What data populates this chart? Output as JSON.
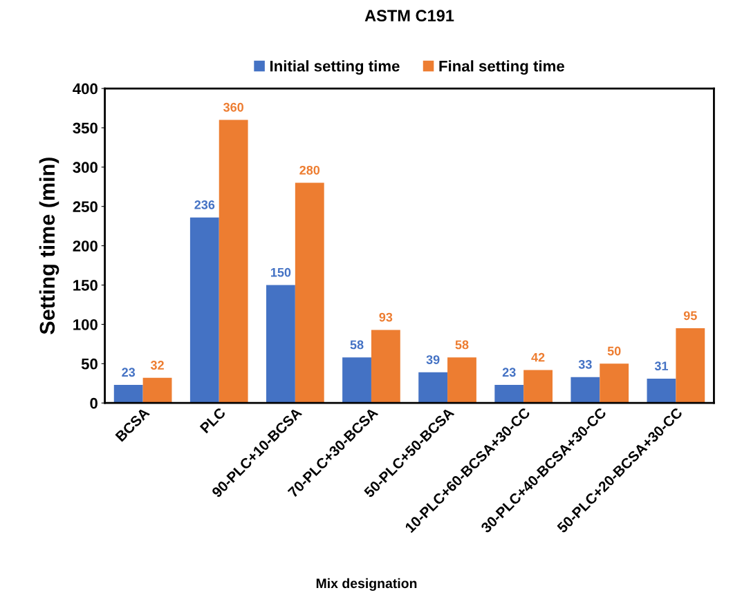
{
  "chart_data": {
    "type": "bar",
    "title": "ASTM C191",
    "xlabel": "Mix designation",
    "ylabel": "Setting time (min)",
    "categories": [
      "BCSA",
      "PLC",
      "90-PLC+10-BCSA",
      "70-PLC+30-BCSA",
      "50-PLC+50-BCSA",
      "10-PLC+60-BCSA+30-CC",
      "30-PLC+40-BCSA+30-CC",
      "50-PLC+20-BCSA+30-CC"
    ],
    "series": [
      {
        "name": "Initial setting time",
        "color": "#4472c4",
        "values": [
          23,
          236,
          150,
          58,
          39,
          23,
          33,
          31
        ]
      },
      {
        "name": "Final setting time",
        "color": "#ed7d31",
        "values": [
          32,
          360,
          280,
          93,
          58,
          42,
          50,
          95
        ]
      }
    ],
    "ylim": [
      0,
      400
    ],
    "yticks": [
      0,
      50,
      100,
      150,
      200,
      250,
      300,
      350,
      400
    ],
    "grid": false,
    "legend": "top",
    "data_labels": true
  }
}
